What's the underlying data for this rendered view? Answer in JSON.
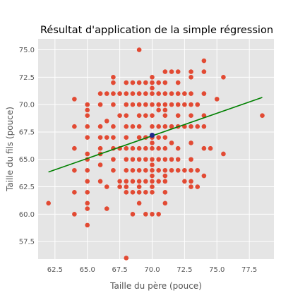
{
  "chart_data": {
    "type": "scatter",
    "title": "Résultat d'application de la simple régression",
    "xlabel": "Taille du père (pouce)",
    "ylabel": "Taille du fils (pouce)",
    "xlim": [
      61.2,
      79.4
    ],
    "ylim": [
      55.9,
      76.0
    ],
    "xticks": [
      {
        "value": 62.5,
        "label": "62.5"
      },
      {
        "value": 65.0,
        "label": "65.0"
      },
      {
        "value": 67.5,
        "label": "67.5"
      },
      {
        "value": 70.0,
        "label": "70.0"
      },
      {
        "value": 72.5,
        "label": "72.5"
      },
      {
        "value": 75.0,
        "label": "75.0"
      },
      {
        "value": 77.5,
        "label": "77.5"
      }
    ],
    "yticks": [
      {
        "value": 57.5,
        "label": "57.5"
      },
      {
        "value": 60.0,
        "label": "60.0"
      },
      {
        "value": 62.5,
        "label": "62.5"
      },
      {
        "value": 65.0,
        "label": "65.0"
      },
      {
        "value": 67.5,
        "label": "67.5"
      },
      {
        "value": 70.0,
        "label": "70.0"
      },
      {
        "value": 72.5,
        "label": "72.5"
      },
      {
        "value": 75.0,
        "label": "75.0"
      }
    ],
    "grid": true,
    "legend": null,
    "colors": {
      "points": "#E24A33",
      "regression_line": "#008000",
      "mean_point": "#1F2A8C",
      "plot_background": "#E5E5E5",
      "grid": "#FFFFFF"
    },
    "series": [
      {
        "type": "scatter",
        "points": [
          [
            62.0,
            61.0
          ],
          [
            64.0,
            60.0
          ],
          [
            64.0,
            62.0
          ],
          [
            64.0,
            64.0
          ],
          [
            64.0,
            66.0
          ],
          [
            64.0,
            68.0
          ],
          [
            64.0,
            70.5
          ],
          [
            65.0,
            59.0
          ],
          [
            65.0,
            60.5
          ],
          [
            65.0,
            61.0
          ],
          [
            65.0,
            62.0
          ],
          [
            65.0,
            63.0
          ],
          [
            65.0,
            64.0
          ],
          [
            65.0,
            65.0
          ],
          [
            65.0,
            65.5
          ],
          [
            65.0,
            67.0
          ],
          [
            65.0,
            68.0
          ],
          [
            65.0,
            69.0
          ],
          [
            65.0,
            69.5
          ],
          [
            65.0,
            70.0
          ],
          [
            66.0,
            63.0
          ],
          [
            66.0,
            64.5
          ],
          [
            66.0,
            65.5
          ],
          [
            66.0,
            66.0
          ],
          [
            66.0,
            67.0
          ],
          [
            66.0,
            68.0
          ],
          [
            66.0,
            70.0
          ],
          [
            66.0,
            71.0
          ],
          [
            66.5,
            60.5
          ],
          [
            66.5,
            62.5
          ],
          [
            66.5,
            67.0
          ],
          [
            66.5,
            68.5
          ],
          [
            66.5,
            71.0
          ],
          [
            67.0,
            64.0
          ],
          [
            67.0,
            65.0
          ],
          [
            67.0,
            66.0
          ],
          [
            67.0,
            67.0
          ],
          [
            67.0,
            68.0
          ],
          [
            67.0,
            70.0
          ],
          [
            67.0,
            71.0
          ],
          [
            67.0,
            72.0
          ],
          [
            67.0,
            72.5
          ],
          [
            67.5,
            62.5
          ],
          [
            67.5,
            63.0
          ],
          [
            67.5,
            66.0
          ],
          [
            67.5,
            69.0
          ],
          [
            67.5,
            71.0
          ],
          [
            68.0,
            56.0
          ],
          [
            68.0,
            62.0
          ],
          [
            68.0,
            62.5
          ],
          [
            68.0,
            63.0
          ],
          [
            68.0,
            64.0
          ],
          [
            68.0,
            65.0
          ],
          [
            68.0,
            66.0
          ],
          [
            68.0,
            67.0
          ],
          [
            68.0,
            68.0
          ],
          [
            68.0,
            69.0
          ],
          [
            68.0,
            70.0
          ],
          [
            68.0,
            71.0
          ],
          [
            68.0,
            72.0
          ],
          [
            68.5,
            60.0
          ],
          [
            68.5,
            62.0
          ],
          [
            68.5,
            63.0
          ],
          [
            68.5,
            64.0
          ],
          [
            68.5,
            65.0
          ],
          [
            68.5,
            66.0
          ],
          [
            68.5,
            68.0
          ],
          [
            68.5,
            70.0
          ],
          [
            68.5,
            71.0
          ],
          [
            68.5,
            72.0
          ],
          [
            69.0,
            61.0
          ],
          [
            69.0,
            62.0
          ],
          [
            69.0,
            62.5
          ],
          [
            69.0,
            63.0
          ],
          [
            69.0,
            64.0
          ],
          [
            69.0,
            65.0
          ],
          [
            69.0,
            66.0
          ],
          [
            69.0,
            67.0
          ],
          [
            69.0,
            68.0
          ],
          [
            69.0,
            69.0
          ],
          [
            69.0,
            70.0
          ],
          [
            69.0,
            71.0
          ],
          [
            69.0,
            72.0
          ],
          [
            69.0,
            75.0
          ],
          [
            69.5,
            60.0
          ],
          [
            69.5,
            62.0
          ],
          [
            69.5,
            63.0
          ],
          [
            69.5,
            64.0
          ],
          [
            69.5,
            65.0
          ],
          [
            69.5,
            66.0
          ],
          [
            69.5,
            67.0
          ],
          [
            69.5,
            69.0
          ],
          [
            69.5,
            70.0
          ],
          [
            69.5,
            71.0
          ],
          [
            69.5,
            72.0
          ],
          [
            70.0,
            60.0
          ],
          [
            70.0,
            62.0
          ],
          [
            70.0,
            62.5
          ],
          [
            70.0,
            63.0
          ],
          [
            70.0,
            63.5
          ],
          [
            70.0,
            64.0
          ],
          [
            70.0,
            64.5
          ],
          [
            70.0,
            65.0
          ],
          [
            70.0,
            66.0
          ],
          [
            70.0,
            66.5
          ],
          [
            70.0,
            67.0
          ],
          [
            70.0,
            68.0
          ],
          [
            70.0,
            69.0
          ],
          [
            70.0,
            70.0
          ],
          [
            70.0,
            71.0
          ],
          [
            70.0,
            71.5
          ],
          [
            70.0,
            72.0
          ],
          [
            70.0,
            72.5
          ],
          [
            70.5,
            60.0
          ],
          [
            70.5,
            63.0
          ],
          [
            70.5,
            64.0
          ],
          [
            70.5,
            65.0
          ],
          [
            70.5,
            66.0
          ],
          [
            70.5,
            67.0
          ],
          [
            70.5,
            68.0
          ],
          [
            70.5,
            69.5
          ],
          [
            70.5,
            70.0
          ],
          [
            70.5,
            71.0
          ],
          [
            70.5,
            72.0
          ],
          [
            71.0,
            61.0
          ],
          [
            71.0,
            62.0
          ],
          [
            71.0,
            63.0
          ],
          [
            71.0,
            63.5
          ],
          [
            71.0,
            64.0
          ],
          [
            71.0,
            65.0
          ],
          [
            71.0,
            66.0
          ],
          [
            71.0,
            67.0
          ],
          [
            71.0,
            68.0
          ],
          [
            71.0,
            69.0
          ],
          [
            71.0,
            69.5
          ],
          [
            71.0,
            70.0
          ],
          [
            71.0,
            71.0
          ],
          [
            71.0,
            72.0
          ],
          [
            71.0,
            73.0
          ],
          [
            71.5,
            64.0
          ],
          [
            71.5,
            65.0
          ],
          [
            71.5,
            66.5
          ],
          [
            71.5,
            68.0
          ],
          [
            71.5,
            70.0
          ],
          [
            71.5,
            71.0
          ],
          [
            71.5,
            73.0
          ],
          [
            72.0,
            64.0
          ],
          [
            72.0,
            65.0
          ],
          [
            72.0,
            66.0
          ],
          [
            72.0,
            68.0
          ],
          [
            72.0,
            69.0
          ],
          [
            72.0,
            70.0
          ],
          [
            72.0,
            71.0
          ],
          [
            72.0,
            72.0
          ],
          [
            72.0,
            73.0
          ],
          [
            72.5,
            63.0
          ],
          [
            72.5,
            64.0
          ],
          [
            72.5,
            68.0
          ],
          [
            72.5,
            70.0
          ],
          [
            72.5,
            71.0
          ],
          [
            73.0,
            62.5
          ],
          [
            73.0,
            63.0
          ],
          [
            73.0,
            64.0
          ],
          [
            73.0,
            65.0
          ],
          [
            73.0,
            66.5
          ],
          [
            73.0,
            68.0
          ],
          [
            73.0,
            69.0
          ],
          [
            73.0,
            70.0
          ],
          [
            73.0,
            71.0
          ],
          [
            73.0,
            72.5
          ],
          [
            73.0,
            73.0
          ],
          [
            73.5,
            62.5
          ],
          [
            73.5,
            64.0
          ],
          [
            73.5,
            68.0
          ],
          [
            73.5,
            70.0
          ],
          [
            74.0,
            63.5
          ],
          [
            74.0,
            66.0
          ],
          [
            74.0,
            68.0
          ],
          [
            74.0,
            69.0
          ],
          [
            74.0,
            71.0
          ],
          [
            74.0,
            73.0
          ],
          [
            74.0,
            74.0
          ],
          [
            74.5,
            66.0
          ],
          [
            75.0,
            70.5
          ],
          [
            75.5,
            65.5
          ],
          [
            75.5,
            72.5
          ],
          [
            78.5,
            69.0
          ]
        ]
      },
      {
        "type": "line",
        "x": [
          62.0,
          78.5
        ],
        "y": [
          63.85,
          70.65
        ]
      },
      {
        "type": "scatter",
        "points": [
          [
            70.0,
            67.2
          ]
        ]
      }
    ]
  }
}
